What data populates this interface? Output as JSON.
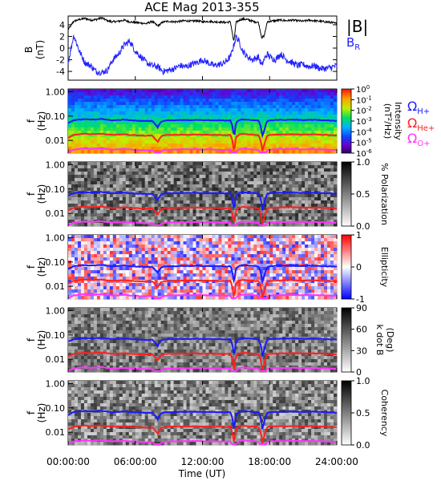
{
  "chart_data": [
    {
      "type": "line",
      "title": "ACE Mag 2013-355",
      "ylabel": "B",
      "yunits": "(nT)",
      "ylim": [
        -5.5,
        5.5
      ],
      "yticks": [
        "4",
        "2",
        "0",
        "-2",
        "-4"
      ],
      "ytick_values": [
        4,
        2,
        0,
        -2,
        -4
      ],
      "xlim_hours": [
        0,
        24
      ],
      "legend": [
        {
          "label": "|B|",
          "color": "#000000"
        },
        {
          "label": "B",
          "subscript": "R",
          "color": "#2222ff"
        }
      ],
      "series": [
        {
          "name": "|B|",
          "color": "#000000",
          "x": [
            0,
            0.5,
            1,
            1.5,
            2,
            2.5,
            3,
            3.5,
            4,
            4.5,
            5,
            5.5,
            6,
            6.5,
            7,
            7.5,
            8,
            8.5,
            9,
            9.5,
            10,
            10.5,
            11,
            11.5,
            12,
            12.5,
            13,
            13.5,
            14,
            14.5,
            14.8,
            15,
            15.3,
            15.6,
            16,
            16.5,
            17,
            17.3,
            17.5,
            17.8,
            18,
            18.5,
            19,
            19.5,
            20,
            20.5,
            21,
            21.5,
            22,
            22.5,
            23,
            23.5,
            24
          ],
          "values": [
            3.2,
            4.6,
            4.9,
            5.1,
            4.8,
            4.9,
            5.2,
            4.7,
            4.5,
            4.6,
            4.8,
            4.5,
            4.4,
            4.3,
            4.2,
            4.6,
            3.8,
            4.5,
            4.6,
            4.5,
            4.6,
            4.7,
            4.6,
            4.7,
            4.5,
            4.6,
            4.5,
            4.5,
            4.4,
            4.5,
            1.0,
            4.4,
            4.8,
            5.0,
            4.9,
            4.6,
            4.4,
            1.8,
            2.0,
            4.5,
            4.6,
            4.7,
            4.8,
            4.7,
            4.8,
            4.7,
            4.6,
            4.8,
            4.7,
            4.6,
            4.5,
            4.4,
            4.2
          ]
        },
        {
          "name": "B_R",
          "color": "#2222ff",
          "x": [
            0,
            0.5,
            1,
            1.5,
            2,
            2.5,
            3,
            3.5,
            4,
            4.5,
            5,
            5.5,
            6,
            6.5,
            7,
            7.5,
            8,
            8.5,
            9,
            9.5,
            10,
            10.5,
            11,
            11.5,
            12,
            12.5,
            13,
            13.5,
            14,
            14.5,
            14.8,
            15,
            15.3,
            15.6,
            16,
            16.5,
            17,
            17.3,
            17.5,
            17.8,
            18,
            18.5,
            19,
            19.5,
            20,
            20.5,
            21,
            21.5,
            22,
            22.5,
            23,
            23.5,
            24
          ],
          "values": [
            -2.5,
            2.2,
            -0.5,
            -2.5,
            -3.0,
            -4.0,
            -4.2,
            -3.8,
            -2.0,
            -1.0,
            0.5,
            1.2,
            -0.5,
            -1.5,
            -2.5,
            -3.0,
            -3.2,
            -4.0,
            -3.8,
            -3.5,
            -3.0,
            -3.2,
            -2.8,
            -2.5,
            -2.0,
            -2.5,
            -3.0,
            -2.8,
            -2.5,
            -1.5,
            0.5,
            2.0,
            1.0,
            -0.5,
            -1.5,
            -2.0,
            -1.5,
            -3.0,
            -2.0,
            -1.0,
            -1.5,
            -2.0,
            -1.0,
            -2.0,
            -2.5,
            -3.0,
            -2.8,
            -3.2,
            -3.0,
            -3.5,
            -3.5,
            -3.3,
            -3.0
          ]
        }
      ]
    },
    {
      "type": "heatmap",
      "ylabel": "f",
      "yunits": "(Hz)",
      "ylog": true,
      "ylim": [
        0.003,
        1.3
      ],
      "yticks": [
        "1.00",
        "0.10",
        "0.01"
      ],
      "ytick_values": [
        1.0,
        0.1,
        0.01
      ],
      "colorbar": {
        "label": "Intensity",
        "units": "(nT",
        "units_sup": "2",
        "units_tail": "/Hz)",
        "ticks": [
          {
            "base": "10",
            "exp": "0"
          },
          {
            "base": "10",
            "exp": "-1"
          },
          {
            "base": "10",
            "exp": "-2"
          },
          {
            "base": "10",
            "exp": "-3"
          },
          {
            "base": "10",
            "exp": "-4"
          },
          {
            "base": "10",
            "exp": "-5"
          },
          {
            "base": "10",
            "exp": "-6"
          }
        ],
        "range_log10": [
          -6,
          0
        ],
        "colormap": "rainbow"
      },
      "overlays": [
        {
          "name": "Ω",
          "subscript": "H+",
          "color": "#1a1aff"
        },
        {
          "name": "Ω",
          "subscript": "He+",
          "color": "#ff2020"
        },
        {
          "name": "Ω",
          "subscript": "O+",
          "color": "#ff33ff"
        }
      ]
    },
    {
      "type": "heatmap",
      "ylabel": "f",
      "yunits": "(Hz)",
      "ylog": true,
      "ylim": [
        0.003,
        1.3
      ],
      "yticks": [
        "1.00",
        "0.10",
        "0.01"
      ],
      "ytick_values": [
        1.0,
        0.1,
        0.01
      ],
      "colorbar": {
        "label": "% Polarization",
        "ticks": [
          "1.0",
          "0.5",
          "0.0"
        ],
        "tick_values": [
          1.0,
          0.5,
          0.0
        ],
        "range": [
          0,
          1
        ],
        "colormap": "gray"
      }
    },
    {
      "type": "heatmap",
      "ylabel": "f",
      "yunits": "(Hz)",
      "ylog": true,
      "ylim": [
        0.003,
        1.3
      ],
      "yticks": [
        "1.00",
        "0.10",
        "0.01"
      ],
      "ytick_values": [
        1.0,
        0.1,
        0.01
      ],
      "colorbar": {
        "label": "Ellipticity",
        "ticks": [
          "1",
          "0",
          "-1"
        ],
        "tick_values": [
          1,
          0,
          -1
        ],
        "range": [
          -1,
          1
        ],
        "colormap": "blue-white-red"
      }
    },
    {
      "type": "heatmap",
      "ylabel": "f",
      "yunits": "(Hz)",
      "ylog": true,
      "ylim": [
        0.003,
        1.3
      ],
      "yticks": [
        "1.00",
        "0.10",
        "0.01"
      ],
      "ytick_values": [
        1.0,
        0.1,
        0.01
      ],
      "colorbar": {
        "label": "k dot B",
        "units": "(Deg)",
        "ticks": [
          "90",
          "60",
          "30",
          "0"
        ],
        "tick_values": [
          90,
          60,
          30,
          0
        ],
        "range": [
          0,
          90
        ],
        "colormap": "gray"
      }
    },
    {
      "type": "heatmap",
      "ylabel": "f",
      "yunits": "(Hz)",
      "ylog": true,
      "ylim": [
        0.003,
        1.3
      ],
      "yticks": [
        "1.00",
        "0.10",
        "0.01"
      ],
      "ytick_values": [
        1.0,
        0.1,
        0.01
      ],
      "colorbar": {
        "label": "Coherency",
        "ticks": [
          "1.0",
          "0.5",
          "0.0"
        ],
        "tick_values": [
          1.0,
          0.5,
          0.0
        ],
        "range": [
          0,
          1
        ],
        "colormap": "gray"
      }
    }
  ],
  "x_axis": {
    "label": "Time (UT)",
    "ticks": [
      "00:00:00",
      "06:00:00",
      "12:00:00",
      "18:00:00",
      "24:00:00"
    ],
    "tick_hours": [
      0,
      6,
      12,
      18,
      24
    ]
  },
  "gyrofrequency_lines": {
    "x_hours": [
      0,
      0.5,
      1,
      1.5,
      2,
      2.5,
      3,
      3.5,
      4,
      4.5,
      5,
      5.5,
      6,
      6.5,
      7,
      7.5,
      7.8,
      8,
      8.3,
      8.6,
      9,
      9.5,
      10,
      10.5,
      11,
      11.5,
      12,
      12.5,
      13,
      13.5,
      14,
      14.5,
      14.7,
      14.85,
      15,
      15.3,
      15.6,
      16,
      16.5,
      17,
      17.2,
      17.35,
      17.5,
      17.8,
      18,
      18.5,
      19,
      19.5,
      20,
      20.5,
      21,
      21.5,
      22,
      22.5,
      23,
      23.5,
      24
    ],
    "B_nT": [
      3.4,
      4.4,
      4.7,
      4.9,
      4.7,
      4.8,
      5.0,
      4.6,
      4.4,
      4.5,
      4.7,
      4.4,
      4.3,
      4.2,
      4.1,
      4.2,
      3.0,
      2.3,
      3.8,
      4.3,
      4.4,
      4.4,
      4.5,
      4.5,
      4.5,
      4.6,
      4.4,
      4.5,
      4.4,
      4.4,
      4.3,
      4.4,
      2.0,
      0.8,
      3.5,
      4.6,
      4.8,
      4.7,
      4.5,
      4.3,
      2.5,
      0.9,
      1.5,
      4.2,
      4.4,
      4.5,
      4.6,
      4.6,
      4.7,
      4.6,
      4.5,
      4.6,
      4.6,
      4.5,
      4.4,
      4.3,
      4.2
    ]
  }
}
